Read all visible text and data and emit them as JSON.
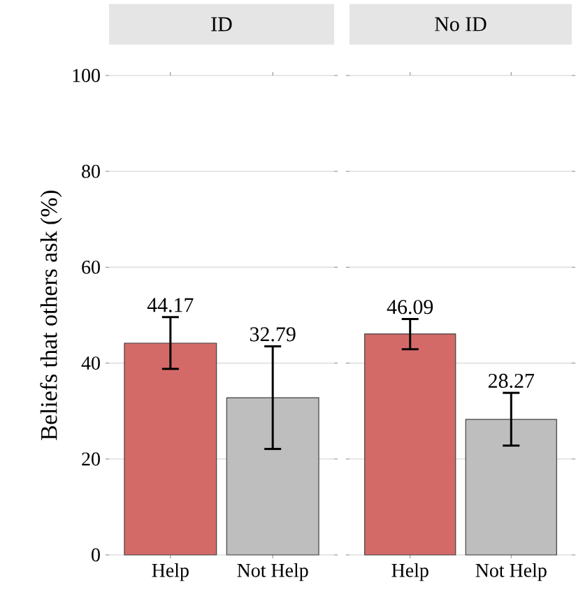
{
  "chart_data": [
    {
      "type": "bar",
      "title": "ID",
      "ylabel": "Beliefs that others ask (%)",
      "categories": [
        "Help",
        "Not Help"
      ],
      "values": [
        44.17,
        32.79
      ],
      "colors": [
        "#d46a68",
        "#bebebe"
      ],
      "errors": [
        [
          38.8,
          49.6
        ],
        [
          22.1,
          43.5
        ]
      ],
      "ylim": [
        0,
        100
      ],
      "yticks": [
        0,
        20,
        40,
        60,
        80,
        100
      ],
      "grid": "y",
      "data_labels": true
    },
    {
      "type": "bar",
      "title": "No ID",
      "categories": [
        "Help",
        "Not Help"
      ],
      "values": [
        46.09,
        28.27
      ],
      "colors": [
        "#d46a68",
        "#bebebe"
      ],
      "errors": [
        [
          42.9,
          49.2
        ],
        [
          22.8,
          33.8
        ]
      ],
      "ylim": [
        0,
        100
      ],
      "yticks": [
        0,
        20,
        40,
        60,
        80,
        100
      ],
      "grid": "y",
      "data_labels": true,
      "tick_labels": "x"
    }
  ]
}
